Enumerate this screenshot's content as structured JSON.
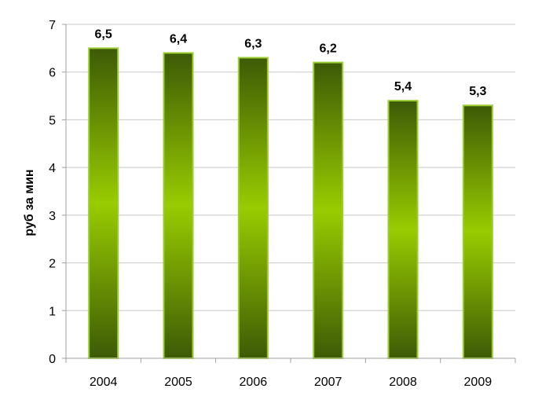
{
  "chart_data": {
    "type": "bar",
    "title": "",
    "xlabel": "",
    "ylabel": "руб за мин",
    "categories": [
      "2004",
      "2005",
      "2006",
      "2007",
      "2008",
      "2009"
    ],
    "values": [
      6.5,
      6.4,
      6.3,
      6.2,
      5.4,
      5.3
    ],
    "data_labels": [
      "6,5",
      "6,4",
      "6,3",
      "6,2",
      "5,4",
      "5,3"
    ],
    "ylim": [
      0,
      7
    ],
    "yticks": [
      0,
      1,
      2,
      3,
      4,
      5,
      6,
      7
    ],
    "grid": true,
    "legend": "none",
    "colors": {
      "bar_dark": "#3d5a06",
      "bar_light": "#99cc00",
      "bar_border": "#9acd32",
      "grid": "#c8c8c8",
      "axis": "#a0a0a0"
    }
  }
}
